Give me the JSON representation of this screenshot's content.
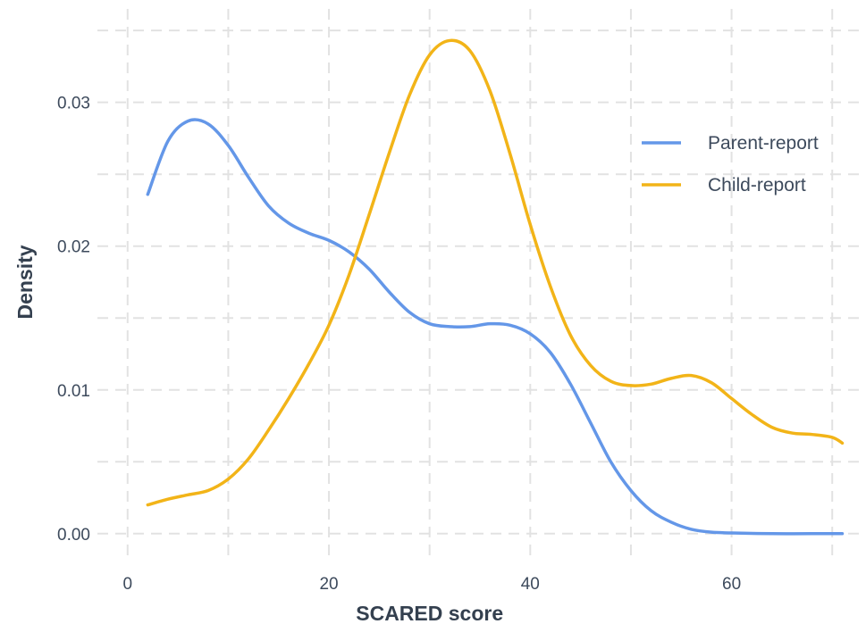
{
  "chart_data": {
    "type": "line",
    "title": "",
    "xlabel": "SCARED score",
    "ylabel": "Density",
    "xlim": [
      -3,
      73
    ],
    "ylim": [
      -0.002,
      0.0365
    ],
    "x_ticks": [
      0,
      20,
      40,
      60
    ],
    "y_ticks": [
      0.0,
      0.01,
      0.02,
      0.03
    ],
    "y_tick_labels": [
      "0.00",
      "0.01",
      "0.02",
      "0.03"
    ],
    "grid": true,
    "legend_position": "top-right",
    "series": [
      {
        "name": "Parent-report",
        "color": "#6497e8",
        "points": [
          [
            2,
            0.0236
          ],
          [
            4,
            0.0273
          ],
          [
            6,
            0.0287
          ],
          [
            8,
            0.0285
          ],
          [
            10,
            0.027
          ],
          [
            12,
            0.0248
          ],
          [
            14,
            0.0228
          ],
          [
            16,
            0.0216
          ],
          [
            18,
            0.0209
          ],
          [
            20,
            0.0204
          ],
          [
            22,
            0.0196
          ],
          [
            24,
            0.0184
          ],
          [
            26,
            0.0168
          ],
          [
            28,
            0.0154
          ],
          [
            30,
            0.0146
          ],
          [
            32,
            0.0144
          ],
          [
            34,
            0.0144
          ],
          [
            36,
            0.0146
          ],
          [
            38,
            0.0145
          ],
          [
            40,
            0.0139
          ],
          [
            42,
            0.0126
          ],
          [
            44,
            0.0104
          ],
          [
            46,
            0.0077
          ],
          [
            48,
            0.005
          ],
          [
            50,
            0.003
          ],
          [
            52,
            0.0016
          ],
          [
            54,
            0.0008
          ],
          [
            56,
            0.0003
          ],
          [
            58,
            0.0001
          ],
          [
            60,
            5e-05
          ],
          [
            64,
            0.0
          ],
          [
            68,
            0.0
          ],
          [
            71,
            0.0
          ]
        ]
      },
      {
        "name": "Child-report",
        "color": "#f2b418",
        "points": [
          [
            2,
            0.002
          ],
          [
            4,
            0.0024
          ],
          [
            6,
            0.0027
          ],
          [
            8,
            0.003
          ],
          [
            10,
            0.0038
          ],
          [
            12,
            0.0052
          ],
          [
            14,
            0.0072
          ],
          [
            16,
            0.0094
          ],
          [
            18,
            0.0118
          ],
          [
            20,
            0.0145
          ],
          [
            22,
            0.018
          ],
          [
            24,
            0.0222
          ],
          [
            26,
            0.0265
          ],
          [
            28,
            0.0305
          ],
          [
            30,
            0.0333
          ],
          [
            32,
            0.0343
          ],
          [
            34,
            0.0336
          ],
          [
            36,
            0.0308
          ],
          [
            38,
            0.0264
          ],
          [
            40,
            0.0215
          ],
          [
            42,
            0.0172
          ],
          [
            44,
            0.0138
          ],
          [
            46,
            0.0117
          ],
          [
            48,
            0.0106
          ],
          [
            50,
            0.0103
          ],
          [
            52,
            0.0104
          ],
          [
            54,
            0.0108
          ],
          [
            56,
            0.011
          ],
          [
            58,
            0.0105
          ],
          [
            60,
            0.0094
          ],
          [
            62,
            0.0083
          ],
          [
            64,
            0.0074
          ],
          [
            66,
            0.007
          ],
          [
            68,
            0.0069
          ],
          [
            70,
            0.0067
          ],
          [
            71,
            0.0063
          ]
        ]
      }
    ]
  }
}
